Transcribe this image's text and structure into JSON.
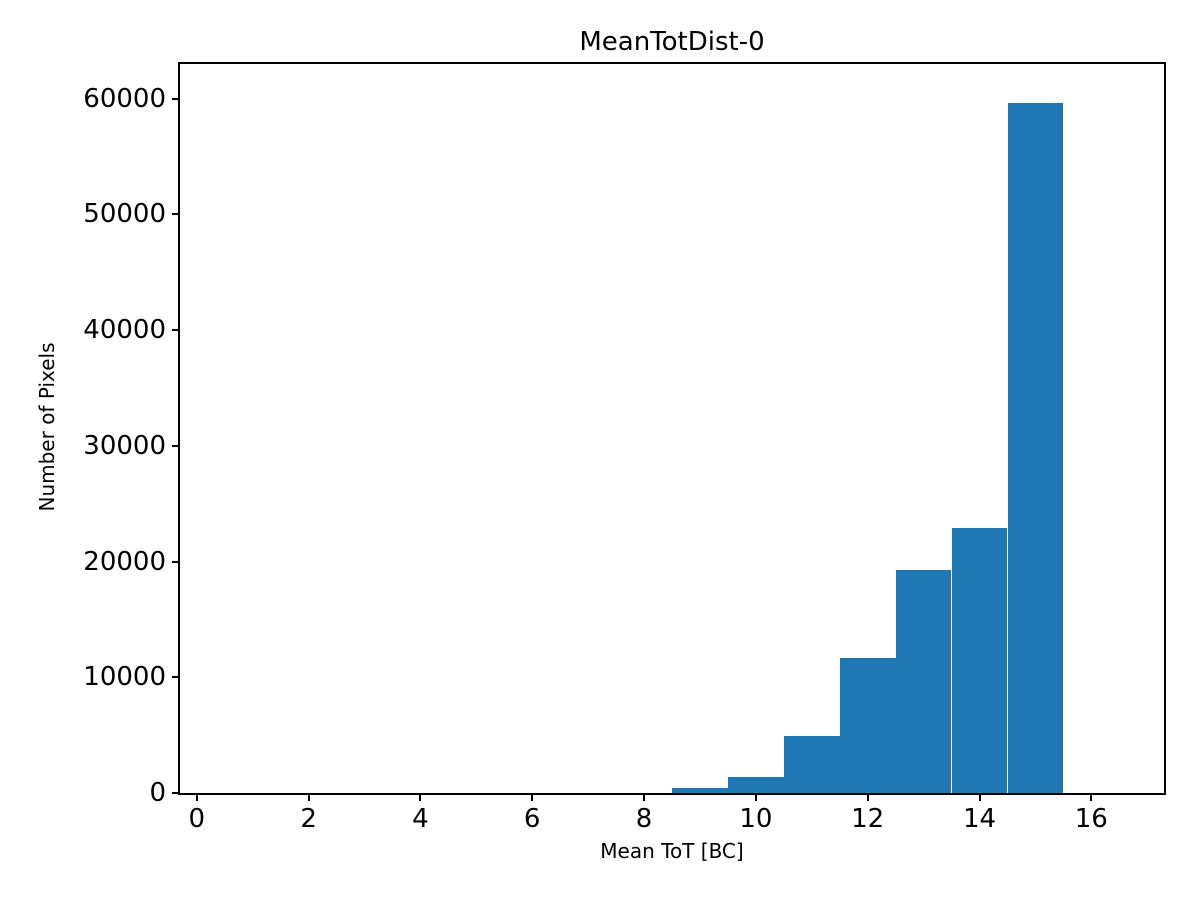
{
  "figure": {
    "background": "#ffffff",
    "text_color": "#000000"
  },
  "chart_data": {
    "type": "bar",
    "subtype": "histogram",
    "title": "MeanTotDist-0",
    "xlabel": "Mean ToT [BC]",
    "ylabel": "Number of Pixels",
    "bar_color": "#1f77b4",
    "axis_color": "#000000",
    "grid": false,
    "legend": null,
    "xlim": [
      -0.3,
      17.3
    ],
    "ylim": [
      0,
      63000
    ],
    "x_ticks": [
      0,
      2,
      4,
      6,
      8,
      10,
      12,
      14,
      16
    ],
    "y_ticks": [
      0,
      10000,
      20000,
      30000,
      40000,
      50000,
      60000
    ],
    "bin_edges": [
      0.5,
      1.5,
      2.5,
      3.5,
      4.5,
      5.5,
      6.5,
      7.5,
      8.5,
      9.5,
      10.5,
      11.5,
      12.5,
      13.5,
      14.5,
      15.5,
      16.5
    ],
    "counts": [
      0,
      0,
      0,
      0,
      0,
      0,
      0,
      0,
      430,
      1400,
      4900,
      11700,
      19300,
      22870,
      59650,
      0
    ]
  }
}
